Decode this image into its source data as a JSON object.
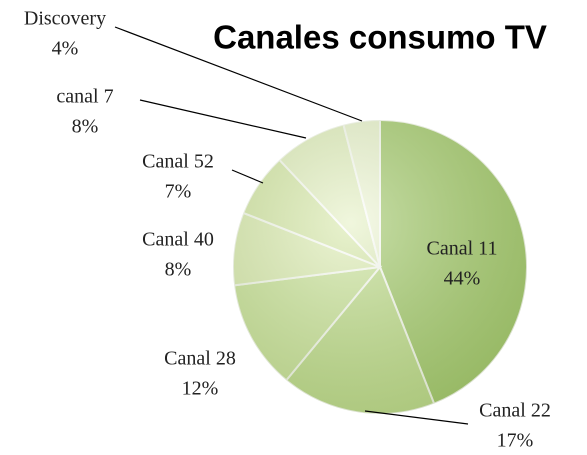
{
  "chart_data": {
    "type": "pie",
    "title": "Canales consumo TV",
    "categories": [
      "Canal 11",
      "Canal 22",
      "Canal 28",
      "Canal 40",
      "Canal 52",
      "canal 7",
      "Discovery"
    ],
    "values": [
      44,
      17,
      12,
      8,
      7,
      8,
      4
    ],
    "value_labels": [
      "44%",
      "17%",
      "12%",
      "8%",
      "7%",
      "8%",
      "4%"
    ],
    "colors": [
      "#a9cc78",
      "#c5df98",
      "#d0e6a6",
      "#e2efbe",
      "#dcebb4",
      "#e8f2cb",
      "#f1f7dc"
    ]
  }
}
